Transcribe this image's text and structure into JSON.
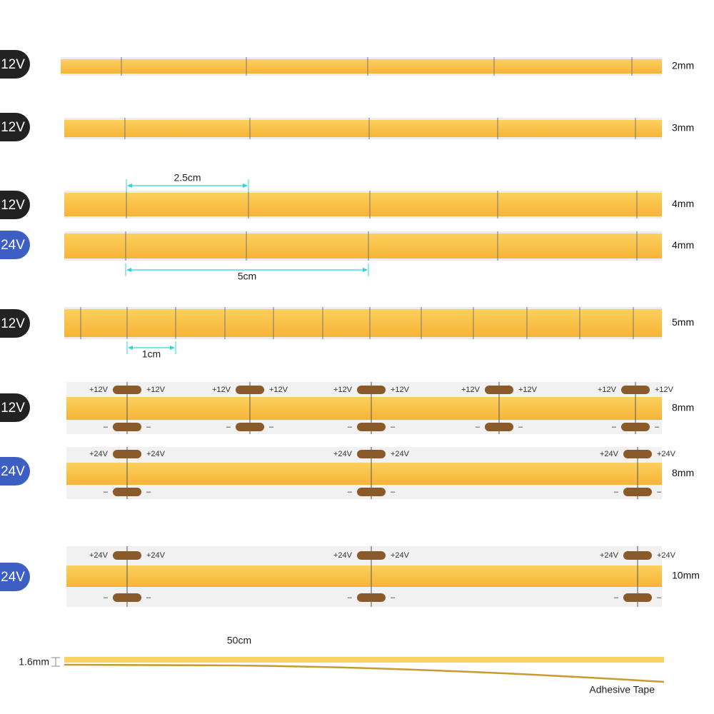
{
  "strips": [
    {
      "voltage": "12V",
      "width": "2mm"
    },
    {
      "voltage": "12V",
      "width": "3mm"
    },
    {
      "voltage": "12V",
      "width": "4mm"
    },
    {
      "voltage": "24V",
      "width": "4mm"
    },
    {
      "voltage": "12V",
      "width": "5mm"
    },
    {
      "voltage": "12V",
      "width": "8mm",
      "pad_plus": "+12V",
      "pad_minus": "–"
    },
    {
      "voltage": "24V",
      "width": "8mm",
      "pad_plus": "+24V",
      "pad_minus": "–"
    },
    {
      "voltage": "24V",
      "width": "10mm",
      "pad_plus": "+24V",
      "pad_minus": "–"
    }
  ],
  "dimensions": {
    "cut_a": "2.5cm",
    "cut_b": "5cm",
    "cut_c": "1cm",
    "length": "50cm"
  },
  "profile": {
    "thickness": "1.6mm",
    "adhesive": "Adhesive Tape"
  }
}
